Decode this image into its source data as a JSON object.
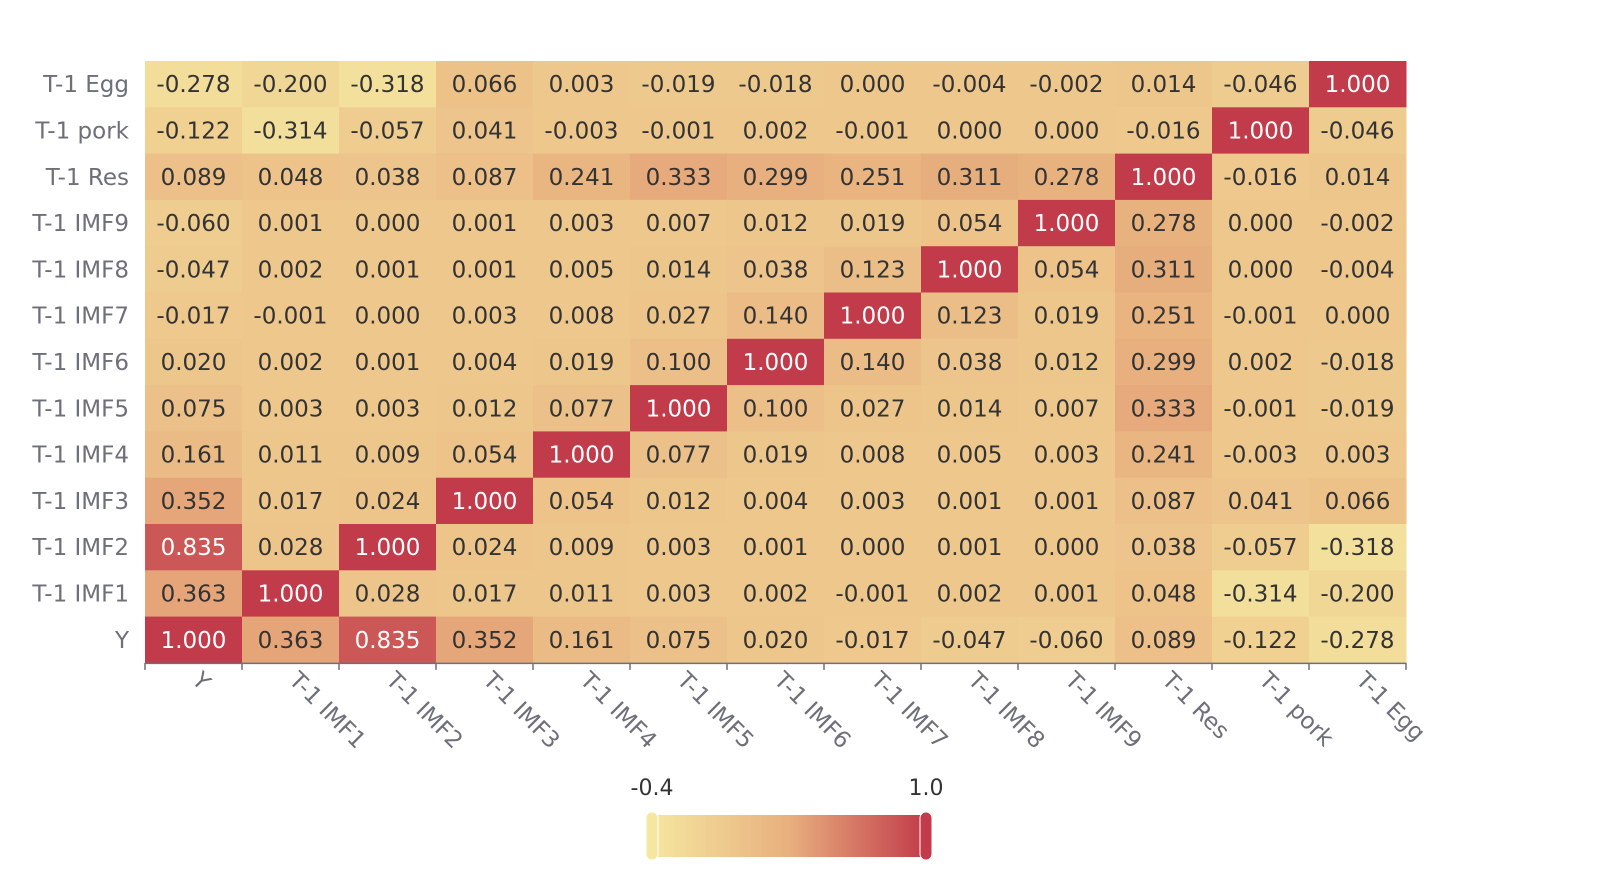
{
  "chart_data": {
    "type": "heatmap",
    "x_categories": [
      "Y",
      "T-1 IMF1",
      "T-1 IMF2",
      "T-1 IMF3",
      "T-1 IMF4",
      "T-1 IMF5",
      "T-1 IMF6",
      "T-1 IMF7",
      "T-1 IMF8",
      "T-1 IMF9",
      "T-1 Res",
      "T-1 pork",
      "T-1 Egg"
    ],
    "y_categories": [
      "Y",
      "T-1 IMF1",
      "T-1 IMF2",
      "T-1 IMF3",
      "T-1 IMF4",
      "T-1 IMF5",
      "T-1 IMF6",
      "T-1 IMF7",
      "T-1 IMF8",
      "T-1 IMF9",
      "T-1 Res",
      "T-1 pork",
      "T-1 Egg"
    ],
    "values_top_to_bottom": [
      [
        "-0.278",
        "-0.200",
        "-0.318",
        "0.066",
        "0.003",
        "-0.019",
        "-0.018",
        "0.000",
        "-0.004",
        "-0.002",
        "0.014",
        "-0.046",
        "1.000"
      ],
      [
        "-0.122",
        "-0.314",
        "-0.057",
        "0.041",
        "-0.003",
        "-0.001",
        "0.002",
        "-0.001",
        "0.000",
        "0.000",
        "-0.016",
        "1.000",
        "-0.046"
      ],
      [
        "0.089",
        "0.048",
        "0.038",
        "0.087",
        "0.241",
        "0.333",
        "0.299",
        "0.251",
        "0.311",
        "0.278",
        "1.000",
        "-0.016",
        "0.014"
      ],
      [
        "-0.060",
        "0.001",
        "0.000",
        "0.001",
        "0.003",
        "0.007",
        "0.012",
        "0.019",
        "0.054",
        "1.000",
        "0.278",
        "0.000",
        "-0.002"
      ],
      [
        "-0.047",
        "0.002",
        "0.001",
        "0.001",
        "0.005",
        "0.014",
        "0.038",
        "0.123",
        "1.000",
        "0.054",
        "0.311",
        "0.000",
        "-0.004"
      ],
      [
        "-0.017",
        "-0.001",
        "0.000",
        "0.003",
        "0.008",
        "0.027",
        "0.140",
        "1.000",
        "0.123",
        "0.019",
        "0.251",
        "-0.001",
        "0.000"
      ],
      [
        "0.020",
        "0.002",
        "0.001",
        "0.004",
        "0.019",
        "0.100",
        "1.000",
        "0.140",
        "0.038",
        "0.012",
        "0.299",
        "0.002",
        "-0.018"
      ],
      [
        "0.075",
        "0.003",
        "0.003",
        "0.012",
        "0.077",
        "1.000",
        "0.100",
        "0.027",
        "0.014",
        "0.007",
        "0.333",
        "-0.001",
        "-0.019"
      ],
      [
        "0.161",
        "0.011",
        "0.009",
        "0.054",
        "1.000",
        "0.077",
        "0.019",
        "0.008",
        "0.005",
        "0.003",
        "0.241",
        "-0.003",
        "0.003"
      ],
      [
        "0.352",
        "0.017",
        "0.024",
        "1.000",
        "0.054",
        "0.012",
        "0.004",
        "0.003",
        "0.001",
        "0.001",
        "0.087",
        "0.041",
        "0.066"
      ],
      [
        "0.835",
        "0.028",
        "1.000",
        "0.024",
        "0.009",
        "0.003",
        "0.001",
        "0.000",
        "0.001",
        "0.000",
        "0.038",
        "-0.057",
        "-0.318"
      ],
      [
        "0.363",
        "1.000",
        "0.028",
        "0.017",
        "0.011",
        "0.003",
        "0.002",
        "-0.001",
        "0.002",
        "0.001",
        "0.048",
        "-0.314",
        "-0.200"
      ],
      [
        "1.000",
        "0.363",
        "0.835",
        "0.352",
        "0.161",
        "0.075",
        "0.020",
        "-0.017",
        "-0.047",
        "-0.060",
        "0.089",
        "-0.122",
        "-0.278"
      ]
    ],
    "visual_map": {
      "min": -0.4,
      "max": 1.0,
      "min_label": "-0.4",
      "max_label": "1.0",
      "colors": [
        "#f5e6a0",
        "#e8b07e",
        "#c23b4a"
      ]
    },
    "legend": "bottom-center",
    "grid": false
  }
}
